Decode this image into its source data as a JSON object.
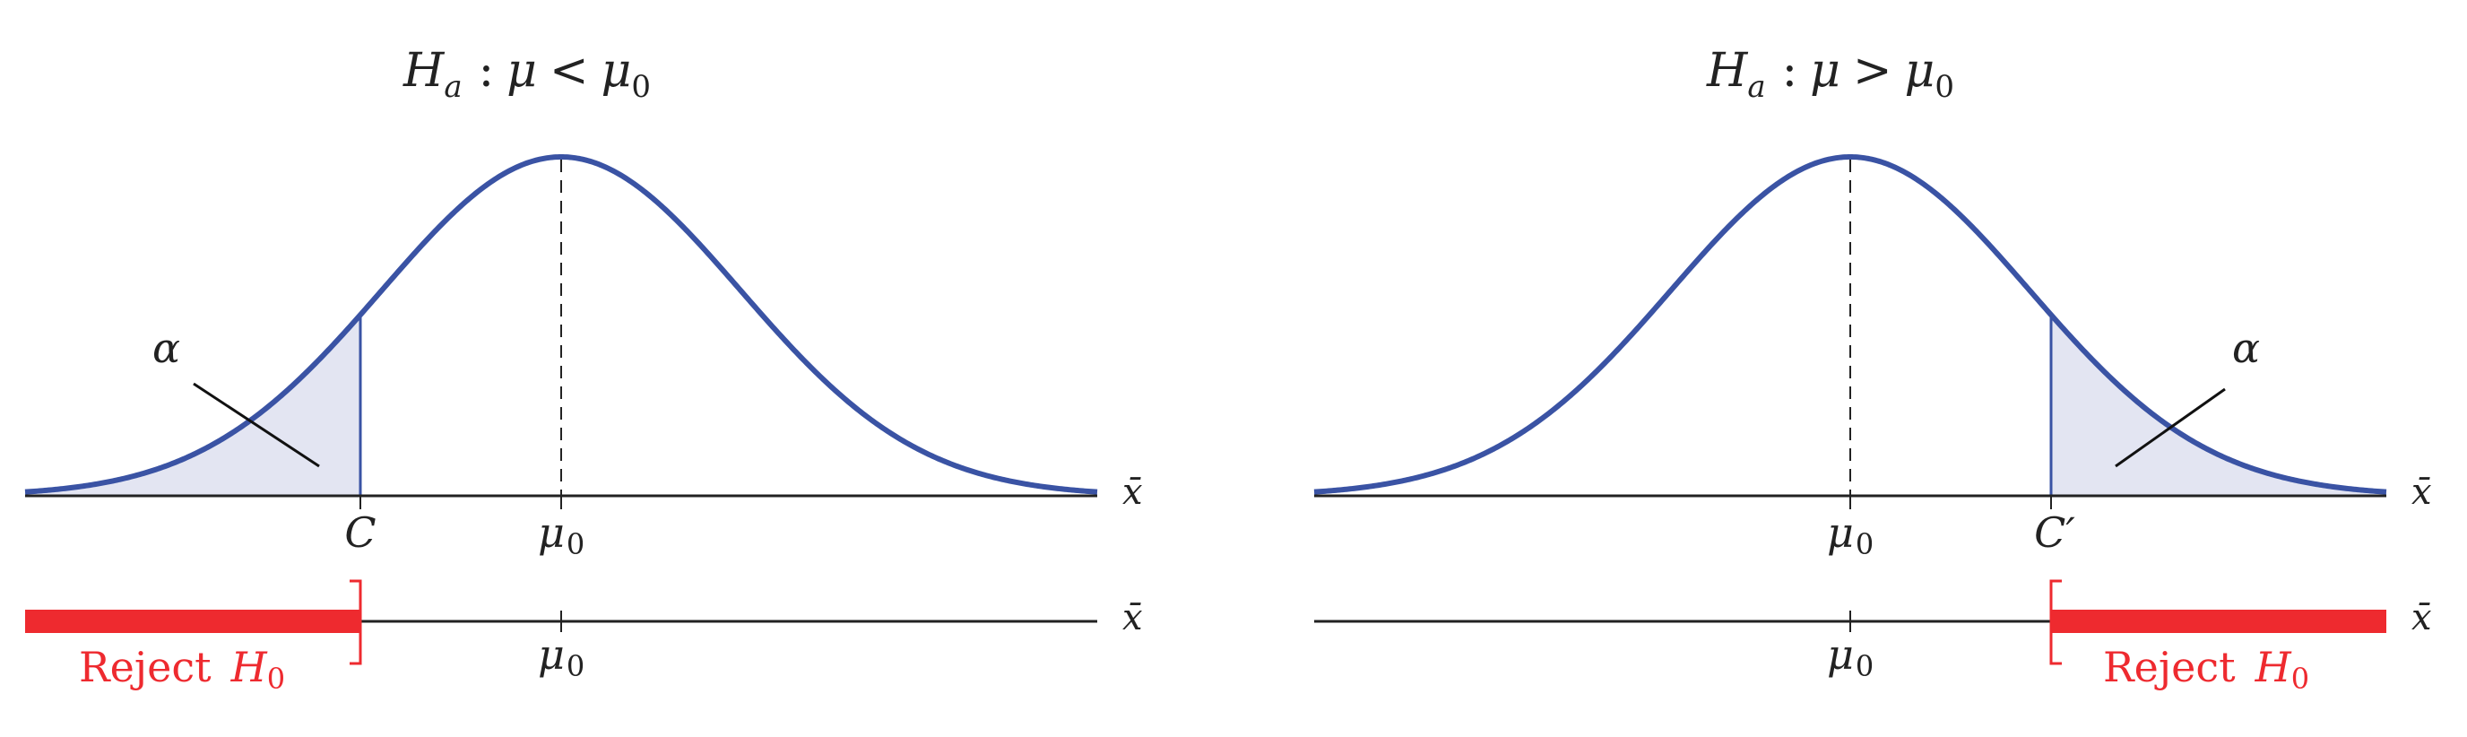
{
  "panels": [
    {
      "id": "left",
      "title": {
        "lhs": "H",
        "lhs_sub": "a",
        "colon": ":",
        "mu": "μ",
        "op": "<",
        "rhs": "μ",
        "rhs_sub": "0"
      },
      "alpha_label": "α",
      "critical_label": "C",
      "mean_label": {
        "mu": "μ",
        "sub": "0"
      },
      "axis_label": "x̄",
      "reject_label": {
        "text": "Reject",
        "h": "H",
        "sub": "0"
      },
      "tail": "left"
    },
    {
      "id": "right",
      "title": {
        "lhs": "H",
        "lhs_sub": "a",
        "colon": ":",
        "mu": "μ",
        "op": ">",
        "rhs": "μ",
        "rhs_sub": "0"
      },
      "alpha_label": "α",
      "critical_label": "C′",
      "mean_label": {
        "mu": "μ",
        "sub": "0"
      },
      "axis_label": "x̄",
      "reject_label": {
        "text": "Reject",
        "h": "H",
        "sub": "0"
      },
      "tail": "right"
    }
  ],
  "colors": {
    "curve": "#3a53a4",
    "shade": "#e3e5f2",
    "reject": "#ee2a2f",
    "axis": "#222222",
    "text": "#222222"
  }
}
